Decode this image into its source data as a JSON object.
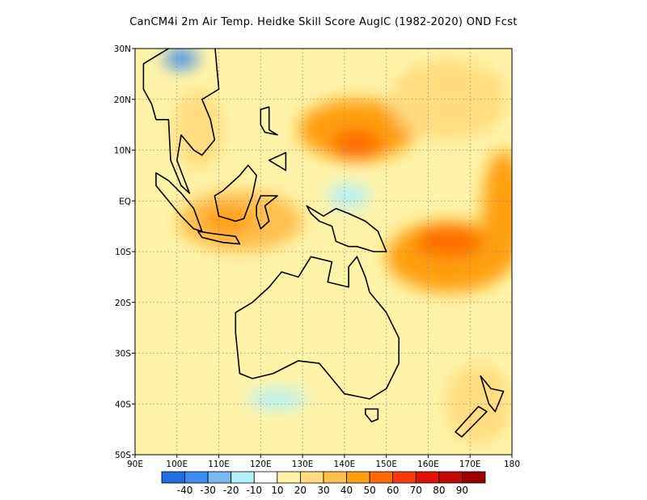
{
  "title": "CanCM4i  2m Air Temp. Heidke Skill Score AuglC (1982-2020) OND Fcst",
  "map": {
    "lon_range": [
      90,
      180
    ],
    "lat_range": [
      -50,
      30
    ],
    "lon_ticks": [
      "90E",
      "100E",
      "110E",
      "120E",
      "130E",
      "140E",
      "150E",
      "160E",
      "170E",
      "180"
    ],
    "lat_ticks": [
      "30N",
      "20N",
      "10N",
      "EQ",
      "10S",
      "20S",
      "30S",
      "40S",
      "50S"
    ],
    "grid": true
  },
  "colorbar": {
    "labels": [
      "-40",
      "-30",
      "-20",
      "-10",
      "10",
      "20",
      "30",
      "40",
      "50",
      "60",
      "70",
      "80",
      "90"
    ],
    "colors": [
      "#1f6fe0",
      "#3c8df0",
      "#7ab7f5",
      "#b4f0f6",
      "#ffffff",
      "#fff3a8",
      "#ffdd80",
      "#ffc04d",
      "#ff9f10",
      "#ff6a00",
      "#ff3810",
      "#e01208",
      "#c00a08",
      "#9c0000"
    ]
  },
  "regions": [
    {
      "name": "w-pacific-warm",
      "lon": 143,
      "lat": 14,
      "rx": 14,
      "ry": 6,
      "color": "#ff9f10"
    },
    {
      "name": "w-pacific-core",
      "lon": 143,
      "lat": 11,
      "rx": 6,
      "ry": 3,
      "color": "#ff6a00"
    },
    {
      "name": "coral-sea-warm",
      "lon": 165,
      "lat": -11,
      "rx": 15,
      "ry": 7,
      "color": "#ff9f10"
    },
    {
      "name": "coral-sea-core",
      "lon": 165,
      "lat": -8,
      "rx": 8,
      "ry": 3,
      "color": "#ff6a00"
    },
    {
      "name": "maritime-warm",
      "lon": 115,
      "lat": -4,
      "rx": 15,
      "ry": 6,
      "color": "#ffc04d"
    },
    {
      "name": "maritime-core",
      "lon": 112,
      "lat": -4,
      "rx": 6,
      "ry": 3,
      "color": "#ff9f10"
    },
    {
      "name": "sea-mainland",
      "lon": 105,
      "lat": 14,
      "rx": 6,
      "ry": 8,
      "color": "#ffdd80"
    },
    {
      "name": "e-pacific-edge",
      "lon": 178,
      "lat": -2,
      "rx": 5,
      "ry": 12,
      "color": "#ff9f10"
    },
    {
      "name": "ne-pacific-warm",
      "lon": 165,
      "lat": 20,
      "rx": 14,
      "ry": 8,
      "color": "#ffdd80"
    },
    {
      "name": "nz-warm",
      "lon": 172,
      "lat": -40,
      "rx": 8,
      "ry": 8,
      "color": "#ffdd80"
    },
    {
      "name": "china-cool",
      "lon": 101,
      "lat": 28,
      "rx": 4,
      "ry": 2,
      "color": "#3c8df0"
    },
    {
      "name": "equator-cool",
      "lon": 141,
      "lat": 1,
      "rx": 3,
      "ry": 1.5,
      "color": "#7ab7f5"
    },
    {
      "name": "equator-cool-halo",
      "lon": 141,
      "lat": 1,
      "rx": 5,
      "ry": 2.5,
      "color": "#b4f0f6"
    },
    {
      "name": "southern-cool",
      "lon": 124,
      "lat": -39,
      "rx": 7,
      "ry": 2,
      "color": "#b4f0f6"
    }
  ],
  "landmasses": [
    {
      "name": "australia",
      "points": [
        [
          114,
          -22
        ],
        [
          114,
          -26
        ],
        [
          115,
          -34
        ],
        [
          118,
          -35
        ],
        [
          123,
          -34
        ],
        [
          129,
          -31.5
        ],
        [
          134,
          -32
        ],
        [
          137,
          -35
        ],
        [
          140,
          -38
        ],
        [
          146,
          -39
        ],
        [
          150,
          -37
        ],
        [
          153,
          -32
        ],
        [
          153,
          -27
        ],
        [
          150,
          -22
        ],
        [
          146,
          -18
        ],
        [
          145,
          -15
        ],
        [
          143,
          -11
        ],
        [
          141,
          -13
        ],
        [
          141,
          -17
        ],
        [
          136,
          -16
        ],
        [
          137,
          -12
        ],
        [
          132,
          -11
        ],
        [
          129,
          -15
        ],
        [
          125,
          -14
        ],
        [
          122,
          -17
        ],
        [
          118,
          -20
        ]
      ]
    },
    {
      "name": "tasmania",
      "points": [
        [
          145,
          -41
        ],
        [
          148,
          -41
        ],
        [
          148,
          -43
        ],
        [
          146.5,
          -43.5
        ],
        [
          145,
          -42
        ]
      ]
    },
    {
      "name": "new-guinea",
      "points": [
        [
          131,
          -1
        ],
        [
          135,
          -3
        ],
        [
          138,
          -1.5
        ],
        [
          141,
          -2.5
        ],
        [
          145,
          -4
        ],
        [
          148,
          -6
        ],
        [
          150,
          -10
        ],
        [
          147,
          -10
        ],
        [
          143,
          -9
        ],
        [
          141,
          -9
        ],
        [
          138,
          -8
        ],
        [
          137,
          -5
        ],
        [
          134,
          -4
        ],
        [
          132,
          -2.5
        ]
      ]
    },
    {
      "name": "borneo",
      "points": [
        [
          109,
          1
        ],
        [
          110,
          -3
        ],
        [
          114,
          -4
        ],
        [
          116,
          -3.5
        ],
        [
          118,
          1
        ],
        [
          119,
          5
        ],
        [
          117,
          7
        ],
        [
          115,
          5
        ],
        [
          111,
          2
        ]
      ]
    },
    {
      "name": "sumatra",
      "points": [
        [
          95,
          5.5
        ],
        [
          98,
          4
        ],
        [
          101,
          1.5
        ],
        [
          104,
          -1.5
        ],
        [
          106,
          -6
        ],
        [
          104,
          -5.5
        ],
        [
          101,
          -3
        ],
        [
          98,
          0
        ],
        [
          95,
          3
        ]
      ]
    },
    {
      "name": "java",
      "points": [
        [
          105,
          -6
        ],
        [
          109,
          -6.5
        ],
        [
          114,
          -7
        ],
        [
          115,
          -8.5
        ],
        [
          111,
          -8.2
        ],
        [
          106,
          -7.2
        ]
      ]
    },
    {
      "name": "sulawesi",
      "points": [
        [
          119,
          -1
        ],
        [
          120,
          1
        ],
        [
          124,
          1
        ],
        [
          121,
          -1
        ],
        [
          122,
          -4
        ],
        [
          120,
          -5.5
        ],
        [
          119,
          -3
        ]
      ]
    },
    {
      "name": "luzon",
      "points": [
        [
          120,
          18
        ],
        [
          122,
          18.5
        ],
        [
          122,
          14
        ],
        [
          124,
          13
        ],
        [
          121,
          13.5
        ],
        [
          120,
          15
        ]
      ]
    },
    {
      "name": "mindanao",
      "points": [
        [
          122,
          8
        ],
        [
          126,
          9.5
        ],
        [
          126,
          6
        ],
        [
          124,
          7
        ]
      ]
    },
    {
      "name": "sea-mainland",
      "points": [
        [
          100,
          31
        ],
        [
          109,
          31
        ],
        [
          110,
          22
        ],
        [
          108,
          21
        ],
        [
          106,
          20
        ],
        [
          108,
          16
        ],
        [
          109,
          12
        ],
        [
          106,
          9
        ],
        [
          104,
          10
        ],
        [
          101,
          13
        ],
        [
          100,
          8
        ],
        [
          103,
          1.5
        ],
        [
          101,
          3
        ],
        [
          98.5,
          8
        ],
        [
          98,
          16
        ],
        [
          95,
          16
        ],
        [
          94,
          19
        ],
        [
          92,
          22
        ],
        [
          92,
          27
        ]
      ]
    },
    {
      "name": "nz-north",
      "points": [
        [
          172.5,
          -34.5
        ],
        [
          175,
          -37
        ],
        [
          178,
          -37.5
        ],
        [
          176,
          -41.5
        ],
        [
          174.5,
          -40
        ]
      ]
    },
    {
      "name": "nz-south",
      "points": [
        [
          172,
          -40.5
        ],
        [
          174,
          -41.5
        ],
        [
          171,
          -44
        ],
        [
          168,
          -46.5
        ],
        [
          166.5,
          -45.5
        ]
      ]
    }
  ]
}
